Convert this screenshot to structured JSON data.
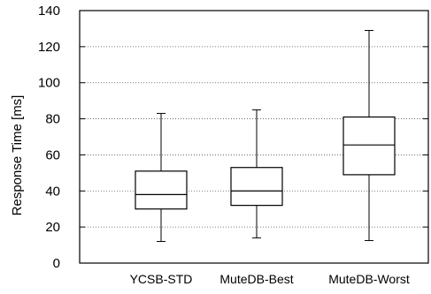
{
  "chart_data": {
    "type": "box",
    "title": "",
    "xlabel": "",
    "ylabel": "Response Time [ms]",
    "ylim": [
      0,
      140
    ],
    "y_ticks": [
      "0",
      "20",
      "40",
      "60",
      "80",
      "100",
      "120",
      "140"
    ],
    "grid": "horizontal dotted",
    "categories": [
      "YCSB-STD",
      "MuteDB-Best",
      "MuteDB-Worst"
    ],
    "boxes": [
      {
        "category": "YCSB-STD",
        "whisker_low": 12,
        "q1": 30,
        "median": 38,
        "q3": 51,
        "whisker_high": 83
      },
      {
        "category": "MuteDB-Best",
        "whisker_low": 14,
        "q1": 32,
        "median": 40,
        "q3": 53,
        "whisker_high": 85
      },
      {
        "category": "MuteDB-Worst",
        "whisker_low": 12.5,
        "q1": 49,
        "median": 65.5,
        "q3": 81,
        "whisker_high": 129
      }
    ]
  }
}
